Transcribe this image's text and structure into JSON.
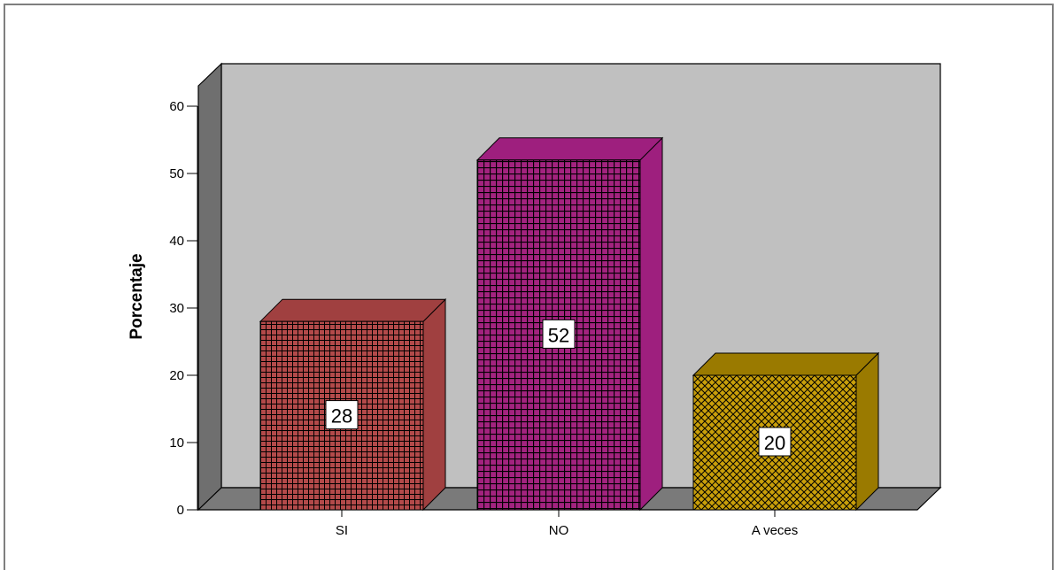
{
  "chart_data": {
    "type": "bar",
    "categories": [
      "SI",
      "NO",
      "A veces"
    ],
    "values": [
      28,
      52,
      20
    ],
    "data_labels": [
      "28",
      "52",
      "20"
    ],
    "xlabel": "",
    "ylabel": "Porcentaje",
    "ylim": [
      0,
      60
    ],
    "yticks": [
      "0",
      "10",
      "20",
      "30",
      "40",
      "50",
      "60"
    ],
    "grid": false,
    "three_d": true,
    "colors": {
      "SI": {
        "front": "#b34a4a",
        "side": "#a04040",
        "grid": "#000000"
      },
      "NO": {
        "front": "#a3237f",
        "side": "#9e1f7e",
        "grid": "#000000"
      },
      "A veces": {
        "front": "#b8930b",
        "side": "#9a7a00",
        "grid": "#000000"
      },
      "wall": "#c0c0c0",
      "wall_side": "#6f6f6f",
      "floor": "#7a7a7a"
    }
  }
}
